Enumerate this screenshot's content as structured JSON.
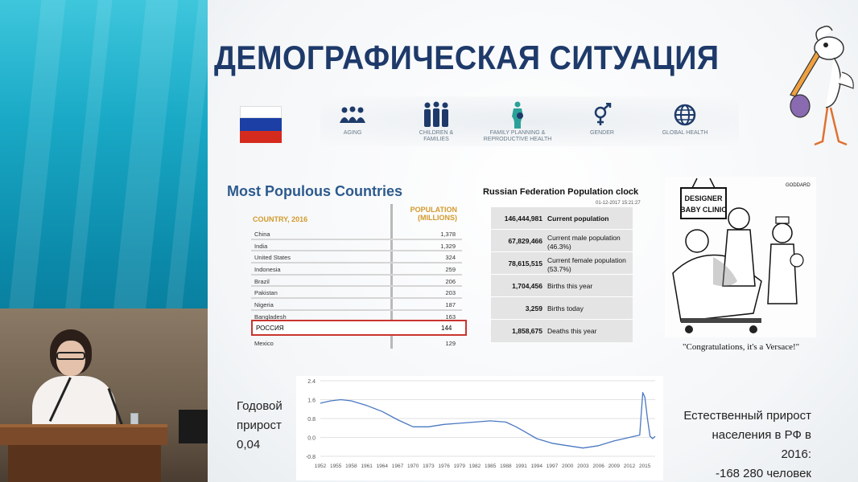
{
  "slide": {
    "title": "ДЕМОГРАФИЧЕСКАЯ СИТУАЦИЯ",
    "topics": [
      {
        "label": "AGING",
        "icon": "aging-icon"
      },
      {
        "label": "CHILDREN & FAMILIES",
        "icon": "children-families-icon"
      },
      {
        "label": "FAMILY PLANNING & REPRODUCTIVE HEALTH",
        "icon": "family-planning-icon"
      },
      {
        "label": "GENDER",
        "icon": "gender-icon"
      },
      {
        "label": "GLOBAL HEALTH",
        "icon": "global-health-icon"
      }
    ],
    "flag_colors": [
      "#ffffff",
      "#1c3fa6",
      "#d52b1e"
    ]
  },
  "populous": {
    "title": "Most Populous Countries",
    "col_country": "COUNTRY, 2016",
    "col_population": "POPULATION (MILLIONS)",
    "rows": [
      {
        "country": "China",
        "population": "1,378"
      },
      {
        "country": "India",
        "population": "1,329"
      },
      {
        "country": "United States",
        "population": "324"
      },
      {
        "country": "Indonesia",
        "population": "259"
      },
      {
        "country": "Brazil",
        "population": "206"
      },
      {
        "country": "Pakistan",
        "population": "203"
      },
      {
        "country": "Nigeria",
        "population": "187"
      },
      {
        "country": "Bangladesh",
        "population": "163"
      }
    ],
    "highlight": {
      "country": "РОССИЯ",
      "population": "144"
    },
    "last": {
      "country": "Mexico",
      "population": "129"
    },
    "highlight_color": "#c9342f"
  },
  "clock": {
    "title": "Russian Federation Population clock",
    "timestamp": "01-12-2017 15:21:27",
    "rows": [
      {
        "value": "146,444,981",
        "label": "Current population"
      },
      {
        "value": "67,829,466",
        "label": "Current male population (46.3%)"
      },
      {
        "value": "78,615,515",
        "label": "Current female population (53.7%)"
      },
      {
        "value": "1,704,456",
        "label": "Births this year"
      },
      {
        "value": "3,259",
        "label": "Births today"
      },
      {
        "value": "1,858,675",
        "label": "Deaths this year"
      }
    ]
  },
  "cartoon": {
    "sign": "DESIGNER BABY CLINIC",
    "signature": "GODDARD",
    "caption": "\"Congratulations, it's a Versace!\""
  },
  "left_note": {
    "line1": "Годовой",
    "line2": "прирост",
    "line3": "0,04"
  },
  "right_note": {
    "line1": "Естественный прирост",
    "line2": "населения в РФ в 2016:",
    "line3": "-168 280 человек"
  },
  "chart_data": {
    "type": "line",
    "title": "",
    "xlabel": "",
    "ylabel": "",
    "x_ticks": [
      "1952",
      "1955",
      "1958",
      "1961",
      "1964",
      "1967",
      "1970",
      "1973",
      "1976",
      "1979",
      "1982",
      "1985",
      "1988",
      "1991",
      "1994",
      "1997",
      "2000",
      "2003",
      "2006",
      "2009",
      "2012",
      "2015"
    ],
    "y_ticks": [
      "2.4",
      "1.6",
      "0.8",
      "0.0",
      "-0.8"
    ],
    "ylim": [
      -0.8,
      2.4
    ],
    "xlim": [
      1952,
      2017
    ],
    "series": [
      {
        "color": "#4a78c2",
        "x": [
          1952,
          1954,
          1956,
          1958,
          1961,
          1964,
          1967,
          1970,
          1973,
          1976,
          1979,
          1982,
          1985,
          1988,
          1990,
          1992,
          1994,
          1997,
          2000,
          2003,
          2006,
          2009,
          2011,
          2012,
          2013,
          2014,
          2014.6,
          2015,
          2015.5,
          2016,
          2016.5,
          2017
        ],
        "y": [
          1.45,
          1.55,
          1.6,
          1.55,
          1.35,
          1.1,
          0.75,
          0.45,
          0.45,
          0.55,
          0.6,
          0.65,
          0.7,
          0.65,
          0.45,
          0.2,
          -0.05,
          -0.25,
          -0.35,
          -0.45,
          -0.35,
          -0.15,
          -0.05,
          0.0,
          0.05,
          0.1,
          1.9,
          1.7,
          0.8,
          0.05,
          -0.05,
          0.04
        ]
      }
    ],
    "grid": true,
    "legend": "none"
  }
}
